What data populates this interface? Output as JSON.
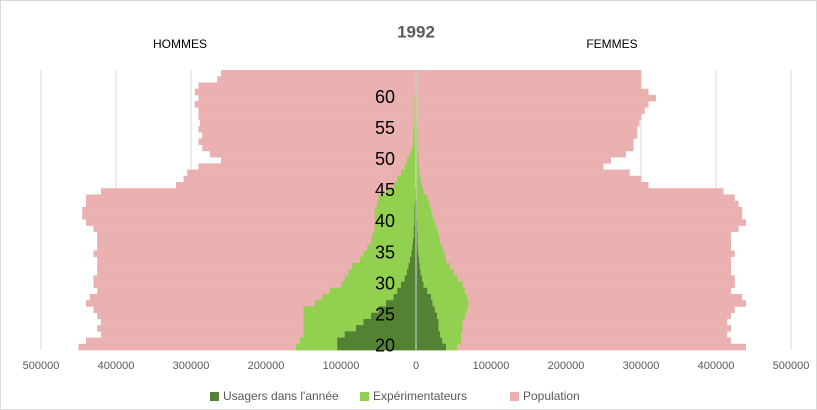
{
  "chart_data": {
    "type": "pyramid",
    "title": "1992",
    "men_label": "HOMMES",
    "women_label": "FEMMES",
    "categories": [
      20,
      null,
      null,
      null,
      null,
      25,
      null,
      null,
      null,
      null,
      30,
      null,
      null,
      null,
      null,
      35,
      null,
      null,
      null,
      null,
      40,
      null,
      null,
      null,
      null,
      45,
      null,
      null,
      null,
      null,
      50,
      null,
      null,
      null,
      null,
      55,
      null,
      null,
      null,
      null,
      60,
      null,
      null,
      null,
      null
    ],
    "xlim": [
      -500000,
      500000
    ],
    "xticks": [
      {
        "value": -500000,
        "label": "500000"
      },
      {
        "value": -400000,
        "label": "400000"
      },
      {
        "value": -300000,
        "label": "300000"
      },
      {
        "value": -200000,
        "label": "200000"
      },
      {
        "value": -100000,
        "label": "100000"
      },
      0,
      100000,
      200000,
      300000,
      400000,
      500000
    ],
    "grid": true,
    "series": [
      {
        "name": "Usagers dans l'année",
        "color": "#548235",
        "men": [
          -105000,
          -105000,
          -95000,
          -80000,
          -70000,
          -60000,
          -50000,
          -40000,
          -30000,
          -25000,
          -20000,
          -15000,
          -12000,
          -10000,
          -8000,
          -6000,
          -5000,
          -4000,
          -3000,
          -3000,
          -2000,
          -2000,
          -2000,
          -1500,
          -1000,
          -1000,
          -500,
          -500,
          -500,
          0,
          0,
          0,
          0,
          0,
          0,
          0,
          0,
          0,
          0,
          0,
          0,
          0,
          0,
          0,
          0
        ],
        "women": [
          40000,
          35000,
          32000,
          30000,
          30000,
          28000,
          25000,
          22000,
          20000,
          15000,
          10000,
          8000,
          6000,
          5000,
          4000,
          3000,
          2500,
          2000,
          2000,
          1500,
          1500,
          1000,
          1000,
          1000,
          500,
          500,
          500,
          0,
          0,
          0,
          0,
          0,
          0,
          0,
          0,
          0,
          0,
          0,
          0,
          0,
          0,
          0,
          0,
          0,
          0
        ]
      },
      {
        "name": "Expérimentateurs",
        "color": "#92d050",
        "men": [
          -160000,
          -155000,
          -150000,
          -150000,
          -150000,
          -150000,
          -150000,
          -135000,
          -125000,
          -115000,
          -100000,
          -95000,
          -90000,
          -85000,
          -75000,
          -70000,
          -65000,
          -60000,
          -58000,
          -55000,
          -55000,
          -55000,
          -55000,
          -52000,
          -50000,
          -40000,
          -30000,
          -25000,
          -20000,
          -15000,
          -12000,
          -8000,
          -5000,
          -4000,
          -3000,
          -3000,
          -2000,
          -2000,
          -2000,
          -2000,
          -2000,
          -1000,
          -1000,
          -1000,
          -1000
        ],
        "women": [
          55000,
          60000,
          60000,
          62000,
          62000,
          65000,
          68000,
          70000,
          68000,
          65000,
          62000,
          55000,
          50000,
          45000,
          40000,
          38000,
          35000,
          32000,
          30000,
          28000,
          25000,
          22000,
          20000,
          18000,
          15000,
          10000,
          8000,
          6000,
          5000,
          4000,
          3000,
          3000,
          2000,
          2000,
          2000,
          2000,
          1000,
          1000,
          1000,
          1000,
          1000,
          1000,
          1000,
          1000,
          1000
        ]
      },
      {
        "name": "Population",
        "color": "#ebb1b1",
        "men": [
          -450000,
          -440000,
          -420000,
          -425000,
          -420000,
          -425000,
          -430000,
          -440000,
          -435000,
          -425000,
          -430000,
          -430000,
          -425000,
          -425000,
          -425000,
          -430000,
          -425000,
          -425000,
          -425000,
          -430000,
          -440000,
          -445000,
          -445000,
          -440000,
          -440000,
          -420000,
          -320000,
          -310000,
          -305000,
          -290000,
          -260000,
          -275000,
          -285000,
          -290000,
          -285000,
          -290000,
          -288000,
          -290000,
          -290000,
          -295000,
          -290000,
          -295000,
          -290000,
          -265000,
          -260000
        ],
        "women": [
          440000,
          420000,
          415000,
          420000,
          415000,
          420000,
          425000,
          440000,
          435000,
          420000,
          425000,
          425000,
          420000,
          420000,
          420000,
          425000,
          420000,
          420000,
          420000,
          430000,
          440000,
          435000,
          435000,
          430000,
          425000,
          410000,
          310000,
          300000,
          285000,
          250000,
          260000,
          280000,
          290000,
          290000,
          295000,
          295000,
          298000,
          300000,
          305000,
          310000,
          320000,
          310000,
          300000,
          300000,
          300000
        ]
      }
    ]
  }
}
